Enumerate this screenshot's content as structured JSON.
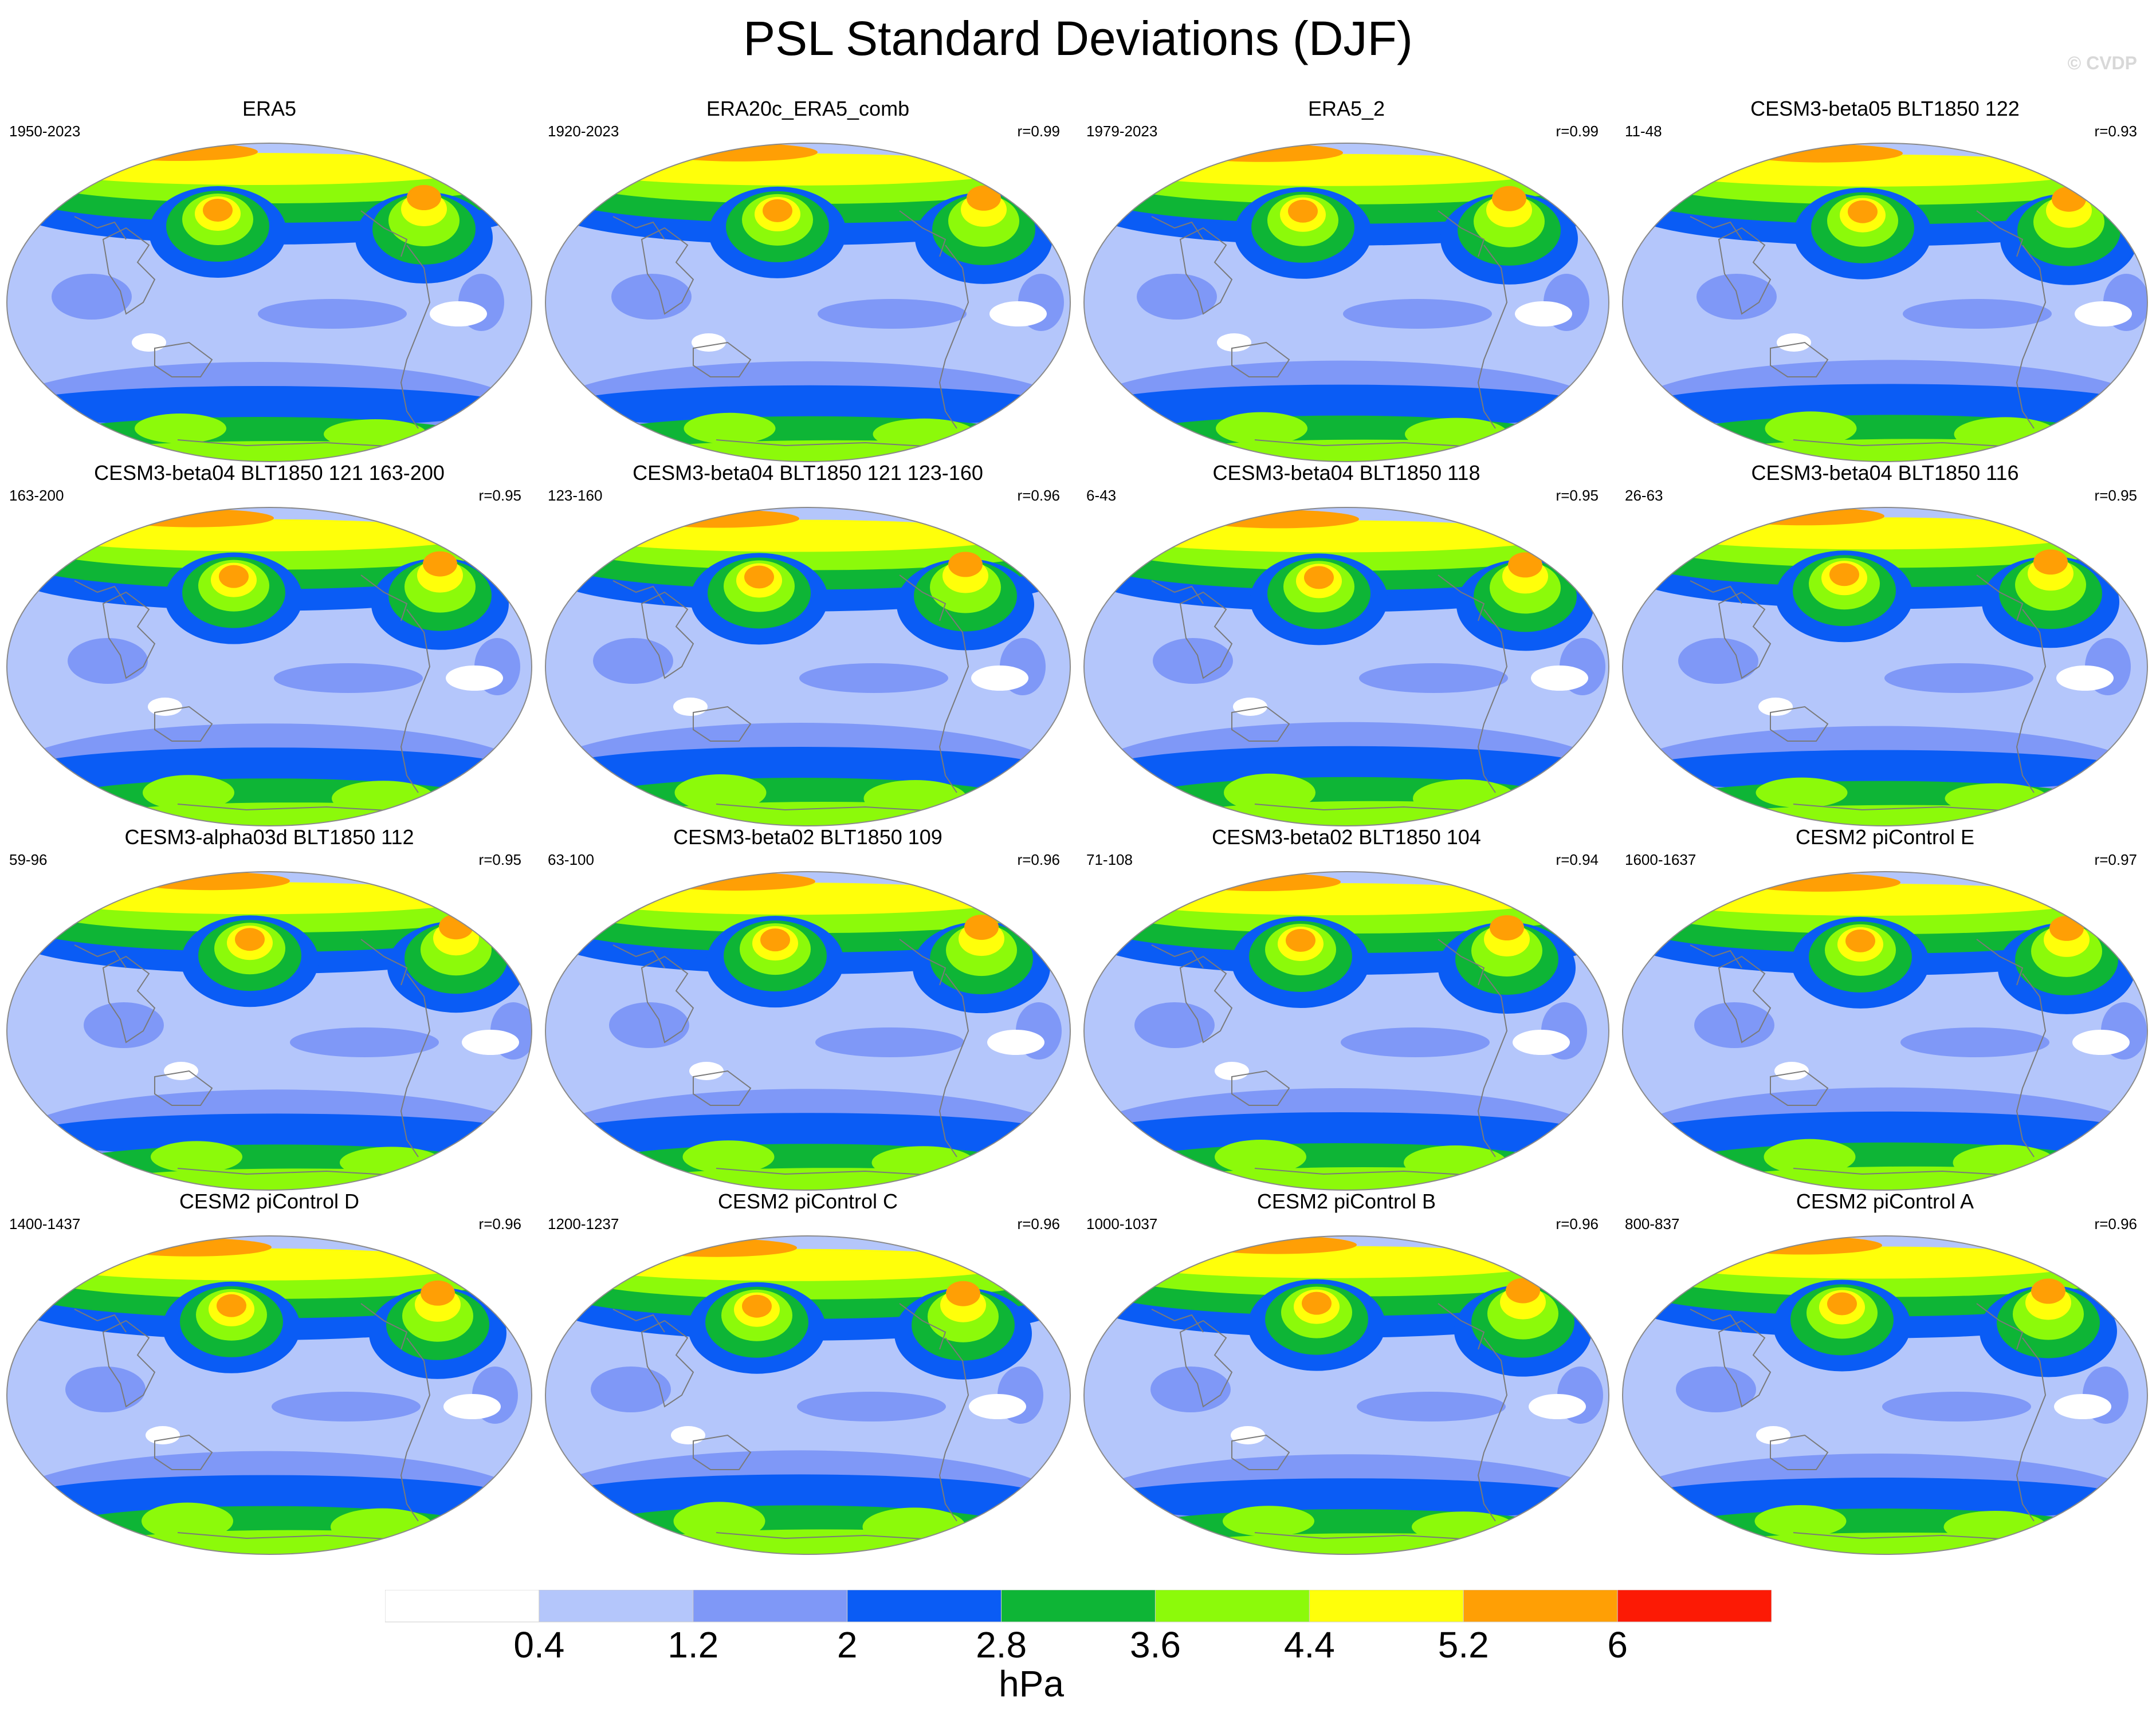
{
  "title": "PSL Standard Deviations (DJF)",
  "copyright": "© CVDP",
  "colorbar": {
    "unit": "hPa",
    "ticks": [
      "0.4",
      "1.2",
      "2",
      "2.8",
      "3.6",
      "4.4",
      "5.2",
      "6"
    ],
    "colors": [
      "#ffffff",
      "#b4c6fb",
      "#7f98f7",
      "#0a5cf5",
      "#0eb536",
      "#8cfa0a",
      "#ffff0a",
      "#ff9f05",
      "#fc1a05"
    ]
  },
  "panels": [
    {
      "title": "ERA5",
      "period": "1950-2023",
      "r": ""
    },
    {
      "title": "ERA20c_ERA5_comb",
      "period": "1920-2023",
      "r": "r=0.99"
    },
    {
      "title": "ERA5_2",
      "period": "1979-2023",
      "r": "r=0.99"
    },
    {
      "title": "CESM3-beta05 BLT1850 122",
      "period": "11-48",
      "r": "r=0.93"
    },
    {
      "title": "CESM3-beta04 BLT1850 121 163-200",
      "period": "163-200",
      "r": "r=0.95"
    },
    {
      "title": "CESM3-beta04 BLT1850 121 123-160",
      "period": "123-160",
      "r": "r=0.96"
    },
    {
      "title": "CESM3-beta04 BLT1850 118",
      "period": "6-43",
      "r": "r=0.95"
    },
    {
      "title": "CESM3-beta04 BLT1850 116",
      "period": "26-63",
      "r": "r=0.95"
    },
    {
      "title": "CESM3-alpha03d BLT1850 112",
      "period": "59-96",
      "r": "r=0.95"
    },
    {
      "title": "CESM3-beta02 BLT1850 109",
      "period": "63-100",
      "r": "r=0.96"
    },
    {
      "title": "CESM3-beta02 BLT1850 104",
      "period": "71-108",
      "r": "r=0.94"
    },
    {
      "title": "CESM2 piControl E",
      "period": "1600-1637",
      "r": "r=0.97"
    },
    {
      "title": "CESM2 piControl D",
      "period": "1400-1437",
      "r": "r=0.96"
    },
    {
      "title": "CESM2 piControl C",
      "period": "1200-1237",
      "r": "r=0.96"
    },
    {
      "title": "CESM2 piControl B",
      "period": "1000-1037",
      "r": "r=0.96"
    },
    {
      "title": "CESM2 piControl A",
      "period": "800-837",
      "r": "r=0.96"
    }
  ]
}
